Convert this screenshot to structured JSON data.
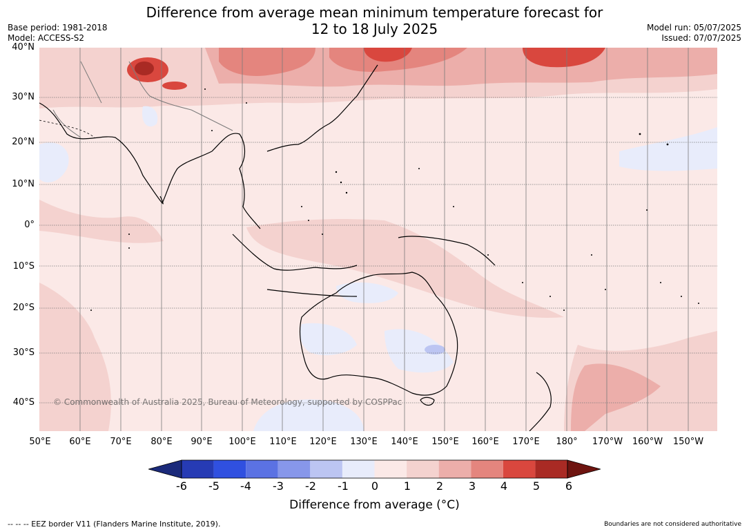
{
  "title_line1": "Difference from average mean minimum temperature forecast for",
  "title_line2": "12 to 18 July 2025",
  "meta_left": [
    "Base period: 1981-2018",
    "Model: ACCESS-S2"
  ],
  "meta_right": [
    "Model run: 05/07/2025",
    "Issued: 07/07/2025"
  ],
  "lat_labels": [
    "40°N",
    "30°N",
    "20°N",
    "10°N",
    "0°",
    "10°S",
    "20°S",
    "30°S",
    "40°S"
  ],
  "lon_labels": [
    "50°E",
    "60°E",
    "70°E",
    "80°E",
    "90°E",
    "100°E",
    "110°E",
    "120°E",
    "130°E",
    "140°E",
    "150°E",
    "160°E",
    "170°E",
    "180°",
    "170°W",
    "160°W",
    "150°W"
  ],
  "copyright": "© Commonwealth of Australia 2025, Bureau of Meteorology, supported by COSPPac",
  "colorbar": {
    "labels": [
      "-6",
      "-5",
      "-4",
      "-3",
      "-2",
      "-1",
      "0",
      "1",
      "2",
      "3",
      "4",
      "5",
      "6"
    ],
    "colors": [
      "#1b2a7a",
      "#263bb4",
      "#3050e0",
      "#5b72e3",
      "#8797ea",
      "#bcc5f2",
      "#e8ecfb",
      "#fbe9e7",
      "#f4d2cf",
      "#ecaeaa",
      "#e4857e",
      "#d9473e",
      "#a92a24",
      "#6e1410"
    ],
    "label": "Difference from average (°C)"
  },
  "footer_left": "--  --  -- EEZ border V11 (Flanders Marine Institute, 2019).",
  "footer_right": "Boundaries are not considered authoritative",
  "map_colors": {
    "background": "#fbe9e7",
    "anom_cool1": "#e8ecfb",
    "anom_cool2": "#bcc5f2",
    "anom_warm2": "#f4d2cf",
    "anom_warm3": "#ecaeaa",
    "anom_warm4": "#e4857e",
    "anom_warm5": "#d9473e",
    "anom_warm6": "#a92a24"
  }
}
